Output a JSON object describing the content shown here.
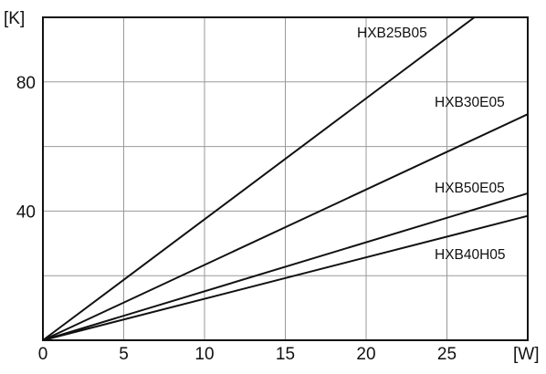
{
  "chart_data": {
    "type": "line",
    "xlabel": "[W]",
    "ylabel": "[K]",
    "xlim": [
      0,
      30
    ],
    "ylim": [
      0,
      100
    ],
    "x_ticks": [
      "0",
      "5",
      "10",
      "15",
      "20",
      "25"
    ],
    "y_ticks": [
      "40",
      "80"
    ],
    "x_gridlines": [
      5,
      10,
      15,
      20,
      25
    ],
    "y_gridlines": [
      20,
      40,
      60,
      80
    ],
    "grid": true,
    "series": [
      {
        "name": "HXB25B05",
        "x": [
          0,
          26.7
        ],
        "y": [
          0,
          100
        ]
      },
      {
        "name": "HXB30E05",
        "x": [
          0,
          30
        ],
        "y": [
          0,
          70
        ]
      },
      {
        "name": "HXB50E05",
        "x": [
          0,
          30
        ],
        "y": [
          0,
          45.5
        ]
      },
      {
        "name": "HXB40H05",
        "x": [
          0,
          30
        ],
        "y": [
          0,
          38.5
        ]
      }
    ],
    "line_color": "#111111",
    "grid_color": "#999999"
  }
}
